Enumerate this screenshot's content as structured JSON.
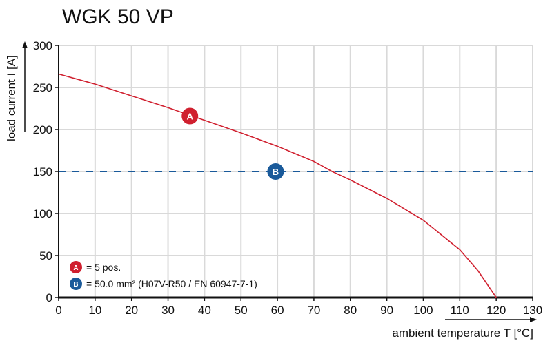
{
  "chart_data": {
    "type": "line",
    "title": "WGK 50 VP",
    "xlabel": "ambient temperature T [°C]",
    "ylabel": "load current I [A]",
    "xlim": [
      0,
      130
    ],
    "ylim": [
      0,
      300
    ],
    "xticks": [
      0,
      10,
      20,
      30,
      40,
      50,
      60,
      70,
      80,
      90,
      100,
      110,
      120,
      130
    ],
    "yticks": [
      0,
      50,
      100,
      150,
      200,
      250,
      300
    ],
    "grid": true,
    "series": [
      {
        "marker_label": "A",
        "color": "#d0202f",
        "style": "solid",
        "x": [
          0,
          10,
          20,
          30,
          40,
          50,
          60,
          70,
          75,
          80,
          90,
          100,
          110,
          115,
          120
        ],
        "y": [
          266,
          254,
          240,
          226,
          211,
          196,
          180,
          162,
          150,
          140,
          118,
          92,
          57,
          32,
          0
        ],
        "marker_at": [
          36,
          216
        ]
      },
      {
        "marker_label": "B",
        "color": "#1a5a9a",
        "style": "dashed",
        "x": [
          0,
          130
        ],
        "y": [
          150,
          150
        ],
        "marker_at": [
          59.5,
          150
        ]
      }
    ],
    "legend": {
      "placement": "bottom-left",
      "entries": [
        {
          "marker": "A",
          "text": "= 5 pos."
        },
        {
          "marker": "B",
          "text": "= 50.0 mm² (H07V-R50 / EN 60947-7-1)"
        }
      ]
    }
  }
}
